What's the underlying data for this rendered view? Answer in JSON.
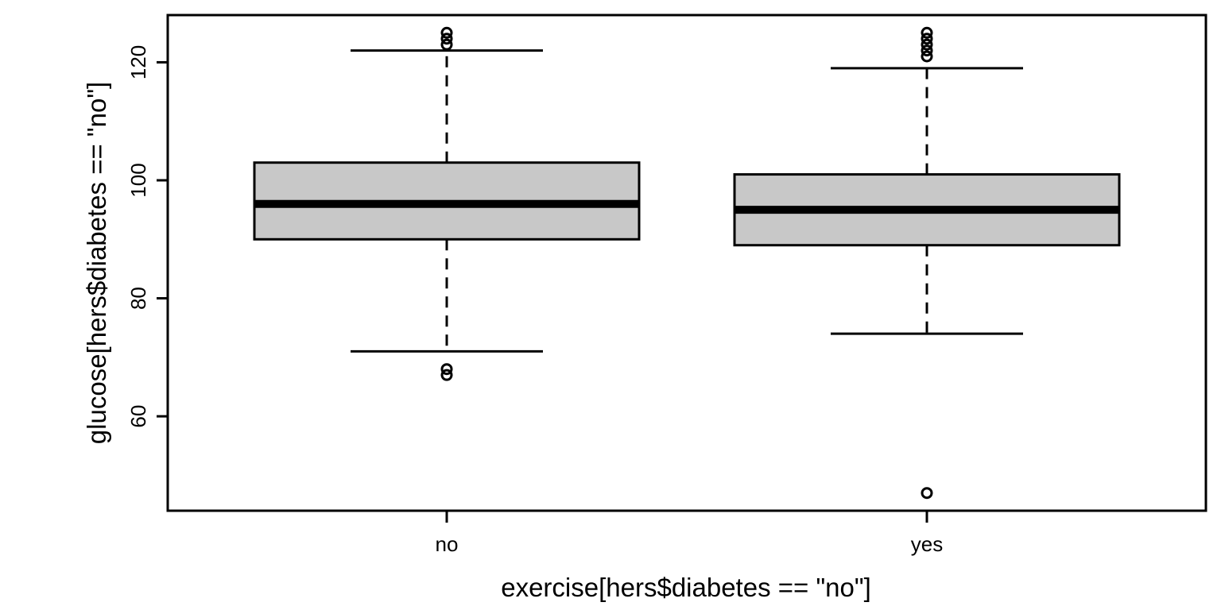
{
  "chart_data": {
    "type": "boxplot",
    "title": "",
    "xlabel": "exercise[hers$diabetes == \"no\"]",
    "ylabel": "glucose[hers$diabetes == \"no\"]",
    "categories": [
      "no",
      "yes"
    ],
    "y_ticks": [
      60,
      80,
      100,
      120
    ],
    "ylim": [
      44,
      128
    ],
    "grid": false,
    "legend": "none",
    "boxes": [
      {
        "category": "no",
        "whisker_low": 71,
        "q1": 90,
        "median": 96,
        "q3": 103,
        "whisker_high": 122,
        "outliers": [
          67,
          68,
          123,
          124,
          125
        ]
      },
      {
        "category": "yes",
        "whisker_low": 74,
        "q1": 89,
        "median": 95,
        "q3": 101,
        "whisker_high": 119,
        "outliers": [
          47,
          121,
          122,
          123,
          124,
          125
        ]
      }
    ],
    "colors": {
      "box_fill": "#c8c8c8",
      "line": "#000000",
      "background": "#ffffff"
    }
  }
}
